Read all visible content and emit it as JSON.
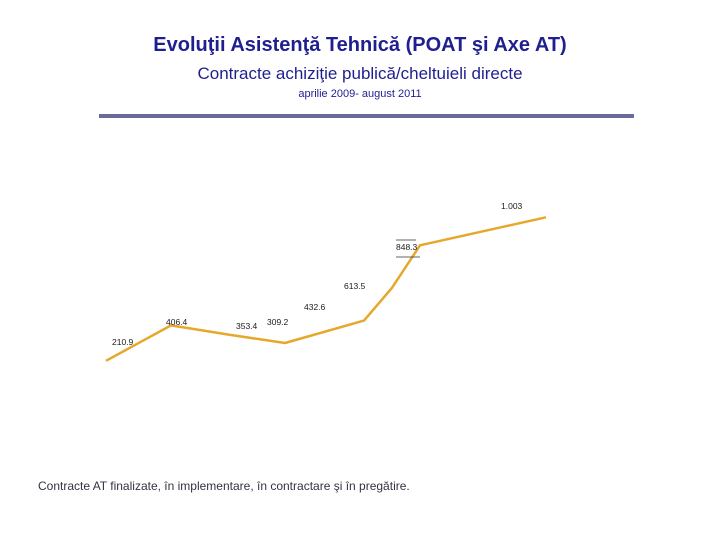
{
  "header": {
    "title": "Evoluţii Asistenţă Tehnică (POAT şi Axe AT)",
    "subtitle": "Contracte achiziţie publică/cheltuieli directe",
    "period": "aprilie 2009- august 2011"
  },
  "chart_data": {
    "type": "line",
    "title": "Evoluţii Asistenţă Tehnică (POAT şi Axe AT)",
    "xlabel": "",
    "ylabel": "",
    "grid": false,
    "legend": "none",
    "ylim": [
      0,
      1200
    ],
    "series": [
      {
        "name": "Contracte AT",
        "color": "#e6a82a",
        "points": [
          {
            "x": 0,
            "y": 210.9,
            "label": "210.9"
          },
          {
            "x": 1,
            "y": 406.4,
            "label": "406.4"
          },
          {
            "x": 2,
            "y": 353.4,
            "label": "353.4"
          },
          {
            "x": 3,
            "y": 309.2,
            "label": "309.2"
          },
          {
            "x": 4,
            "y": 432.6,
            "label": "432.6"
          },
          {
            "x": 5,
            "y": 613.5,
            "label": "613.5"
          },
          {
            "x": 6,
            "y": 848.3,
            "label": "848.3"
          },
          {
            "x": 7,
            "y": 1003,
            "label": "1.003"
          }
        ]
      }
    ]
  },
  "footnote": "Contracte AT finalizate, în implementare, în contractare şi în pregătire."
}
